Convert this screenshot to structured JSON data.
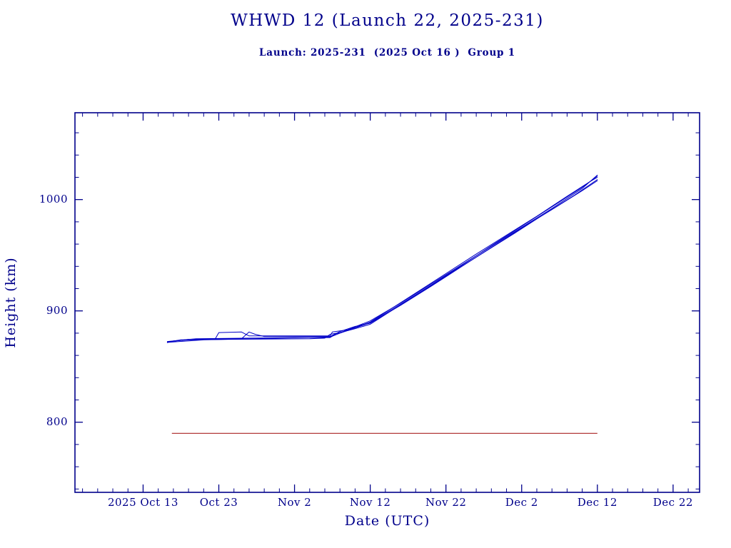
{
  "page": {
    "background": "#ffffff"
  },
  "chart_data": {
    "type": "line",
    "title": "WHWD 12 (Launch 22, 2025-231)",
    "subtitle": "Launch: 2025-231  (2025 Oct 16 )  Group 1",
    "xlabel": "Date (UTC)",
    "ylabel": "Height (km)",
    "x_unit": "days since 2025 Oct 13",
    "xlim": [
      -9,
      73.5
    ],
    "ylim": [
      737,
      1078
    ],
    "grid": false,
    "legend": "none",
    "x_ticks": [
      {
        "day": 0,
        "label": "2025 Oct 13"
      },
      {
        "day": 10,
        "label": "Oct 23"
      },
      {
        "day": 20,
        "label": "Nov 2"
      },
      {
        "day": 30,
        "label": "Nov 12"
      },
      {
        "day": 40,
        "label": "Nov 22"
      },
      {
        "day": 50,
        "label": "Dec 2"
      },
      {
        "day": 60,
        "label": "Dec 12"
      },
      {
        "day": 70,
        "label": "Dec 22"
      }
    ],
    "x_minor_step_days": 2,
    "y_ticks": [
      {
        "value": 800,
        "label": "800"
      },
      {
        "value": 900,
        "label": "900"
      },
      {
        "value": 1000,
        "label": "1000"
      }
    ],
    "y_minor_step_km": 20,
    "colors": {
      "frame": "#00008b",
      "text": "#00008b",
      "series": "#0000c8",
      "reference": "#aa2222"
    },
    "series": [
      {
        "name": "track-1",
        "points": [
          [
            3.2,
            871.5
          ],
          [
            4,
            873
          ],
          [
            6,
            874
          ],
          [
            12,
            874.5
          ],
          [
            22,
            875
          ],
          [
            24,
            875.5
          ],
          [
            24.7,
            879
          ],
          [
            26,
            880.5
          ],
          [
            28,
            885
          ],
          [
            30,
            890
          ],
          [
            33,
            903
          ],
          [
            36,
            916
          ],
          [
            40,
            933.5
          ],
          [
            44,
            951
          ],
          [
            48,
            968
          ],
          [
            52,
            985
          ],
          [
            56,
            1003
          ],
          [
            59,
            1016
          ],
          [
            60,
            1020
          ]
        ]
      },
      {
        "name": "track-2",
        "points": [
          [
            3.2,
            872
          ],
          [
            5,
            874
          ],
          [
            9.5,
            874.5
          ],
          [
            10,
            880.5
          ],
          [
            13,
            881
          ],
          [
            14,
            877.5
          ],
          [
            22,
            877.5
          ],
          [
            24.7,
            877.5
          ],
          [
            25,
            881
          ],
          [
            27,
            883
          ],
          [
            30,
            891
          ],
          [
            34,
            907
          ],
          [
            38,
            924
          ],
          [
            42,
            941
          ],
          [
            46,
            958
          ],
          [
            50,
            975
          ],
          [
            54,
            992
          ],
          [
            58,
            1010
          ],
          [
            60,
            1022
          ]
        ]
      },
      {
        "name": "track-3",
        "points": [
          [
            3.3,
            872
          ],
          [
            6,
            874.5
          ],
          [
            13,
            875
          ],
          [
            14,
            881
          ],
          [
            14.8,
            879
          ],
          [
            16,
            877
          ],
          [
            24.7,
            877
          ],
          [
            26,
            881.5
          ],
          [
            28,
            886
          ],
          [
            30,
            889
          ],
          [
            34,
            905
          ],
          [
            38,
            922
          ],
          [
            42,
            939.5
          ],
          [
            46,
            957
          ],
          [
            50,
            974.5
          ],
          [
            54,
            991
          ],
          [
            58,
            1008
          ],
          [
            60,
            1017
          ]
        ]
      },
      {
        "name": "track-4",
        "points": [
          [
            3.2,
            872.5
          ],
          [
            7,
            875
          ],
          [
            20,
            876
          ],
          [
            24.7,
            876
          ],
          [
            25.5,
            879.5
          ],
          [
            28,
            884
          ],
          [
            30,
            888
          ],
          [
            33,
            901
          ],
          [
            37,
            918
          ],
          [
            41,
            935.5
          ],
          [
            45,
            952.5
          ],
          [
            49,
            969.5
          ],
          [
            53,
            987
          ],
          [
            57,
            1004
          ],
          [
            60,
            1018
          ]
        ]
      },
      {
        "name": "track-5",
        "points": [
          [
            3.3,
            871.8
          ],
          [
            8,
            874
          ],
          [
            18,
            875.5
          ],
          [
            24.7,
            876.5
          ],
          [
            26,
            880
          ],
          [
            29,
            887
          ],
          [
            30,
            889.5
          ],
          [
            34,
            906
          ],
          [
            38,
            923
          ],
          [
            42,
            940.5
          ],
          [
            46,
            958.5
          ],
          [
            50,
            976
          ],
          [
            54,
            993.5
          ],
          [
            58,
            1011
          ],
          [
            60,
            1021
          ]
        ]
      }
    ],
    "reference_line": {
      "name": "reference-altitude",
      "height_km": 790,
      "x_start_day": 3.8,
      "x_end_day": 60
    }
  }
}
